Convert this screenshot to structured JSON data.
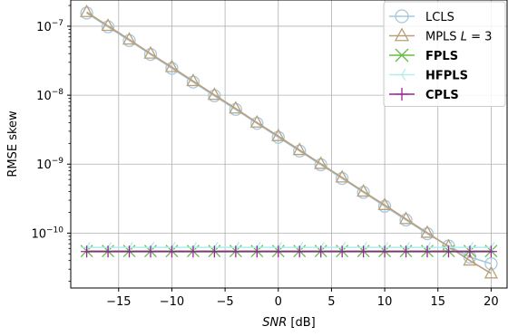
{
  "chart_data": {
    "type": "line",
    "title": "",
    "xlabel": "SNR [dB]",
    "xlabel_italic_part": "SNR",
    "xlabel_unit_part": " [dB]",
    "ylabel": "RMSE skew",
    "y_scale": "log",
    "xlim": [
      -19.5,
      21.5
    ],
    "ylim": [
      1.6e-11,
      2.4e-07
    ],
    "grid": true,
    "legend_position": "top-right",
    "x_ticks": [
      -15,
      -10,
      -5,
      0,
      5,
      10,
      15,
      20
    ],
    "x_tick_labels": [
      "−15",
      "−10",
      "−5",
      "0",
      "5",
      "10",
      "15",
      "20"
    ],
    "y_ticks": [
      1e-10,
      1e-09,
      1e-08,
      1e-07
    ],
    "y_tick_labels": [
      {
        "base": "10",
        "exp": "−10"
      },
      {
        "base": "10",
        "exp": "−9"
      },
      {
        "base": "10",
        "exp": "−8"
      },
      {
        "base": "10",
        "exp": "−7"
      }
    ],
    "x": [
      -18,
      -16,
      -14,
      -12,
      -10,
      -8,
      -6,
      -4,
      -2,
      0,
      2,
      4,
      6,
      8,
      10,
      12,
      14,
      16,
      18,
      20
    ],
    "series": [
      {
        "name": "LCLS",
        "color": "#a6c8e0",
        "marker": "circle",
        "bold": false,
        "values": [
          1.55e-07,
          9.8e-08,
          6.2e-08,
          3.9e-08,
          2.45e-08,
          1.55e-08,
          9.8e-09,
          6.2e-09,
          3.9e-09,
          2.45e-09,
          1.55e-09,
          9.8e-10,
          6.2e-10,
          3.9e-10,
          2.45e-10,
          1.55e-10,
          9.8e-11,
          6.5e-11,
          4.5e-11,
          3.6e-11
        ]
      },
      {
        "name": "MPLS L = 3",
        "name_prefix": "MPLS ",
        "name_math": "L",
        "name_suffix": " = 3",
        "color": "#b9a07a",
        "marker": "triangle",
        "bold": false,
        "values": [
          1.6e-07,
          1.01e-07,
          6.4e-08,
          4e-08,
          2.55e-08,
          1.6e-08,
          1.01e-08,
          6.4e-09,
          4e-09,
          2.55e-09,
          1.6e-09,
          1.01e-09,
          6.4e-10,
          4e-10,
          2.55e-10,
          1.6e-10,
          1.01e-10,
          6.4e-11,
          4e-11,
          2.6e-11
        ]
      },
      {
        "name": "FPLS",
        "color": "#66bb44",
        "marker": "x",
        "bold": true,
        "values": [
          5.5e-11,
          5.5e-11,
          5.5e-11,
          5.5e-11,
          5.5e-11,
          5.5e-11,
          5.5e-11,
          5.5e-11,
          5.5e-11,
          5.5e-11,
          5.5e-11,
          5.5e-11,
          5.5e-11,
          5.5e-11,
          5.5e-11,
          5.5e-11,
          5.5e-11,
          5.5e-11,
          5.5e-11,
          5.5e-11
        ]
      },
      {
        "name": "HFPLS",
        "color": "#b5ecec",
        "marker": "tri_left",
        "bold": true,
        "values": [
          6.2e-11,
          6.2e-11,
          6.2e-11,
          6.2e-11,
          6.2e-11,
          6.2e-11,
          6.2e-11,
          6.2e-11,
          6.2e-11,
          6.2e-11,
          6.2e-11,
          6.2e-11,
          6.2e-11,
          6.2e-11,
          6.2e-11,
          6.2e-11,
          6.2e-11,
          6.2e-11,
          6.2e-11,
          6.2e-11
        ]
      },
      {
        "name": "CPLS",
        "color": "#992299",
        "marker": "plus",
        "bold": true,
        "values": [
          5.4e-11,
          5.4e-11,
          5.4e-11,
          5.4e-11,
          5.4e-11,
          5.4e-11,
          5.4e-11,
          5.4e-11,
          5.4e-11,
          5.4e-11,
          5.4e-11,
          5.4e-11,
          5.4e-11,
          5.4e-11,
          5.4e-11,
          5.4e-11,
          5.4e-11,
          5.4e-11,
          5.4e-11,
          5.4e-11
        ]
      }
    ]
  }
}
